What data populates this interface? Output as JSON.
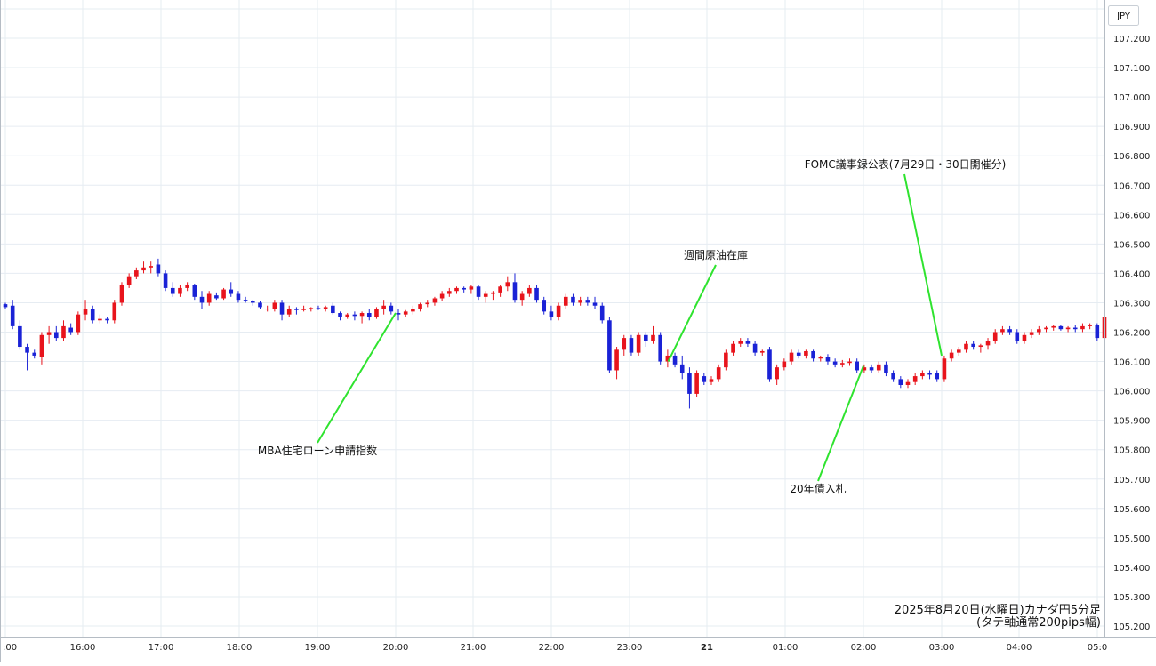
{
  "chart_data": {
    "type": "candlestick",
    "currency": "JPY",
    "colors": {
      "up": "#e8141c",
      "down": "#1a22d6",
      "annotation_line": "#2fe32f",
      "grid": "#e6ecf2"
    },
    "y_ticks": [
      "107.200",
      "107.100",
      "107.000",
      "106.900",
      "106.800",
      "106.700",
      "106.600",
      "106.500",
      "106.400",
      "106.300",
      "106.200",
      "106.100",
      "106.000",
      "105.900",
      "105.800",
      "105.700",
      "105.600",
      "105.500",
      "105.400",
      "105.300",
      "105.200"
    ],
    "ylim": [
      105.2,
      107.2
    ],
    "x_ticks": [
      ":00",
      "16:00",
      "17:00",
      "18:00",
      "19:00",
      "20:00",
      "21:00",
      "22:00",
      "23:00",
      "21",
      "01:00",
      "02:00",
      "03:00",
      "04:00",
      "05:0"
    ],
    "candles": [
      [
        106.295,
        106.3,
        106.28,
        106.285
      ],
      [
        106.29,
        106.31,
        106.21,
        106.22
      ],
      [
        106.22,
        106.24,
        106.14,
        106.15
      ],
      [
        106.15,
        106.16,
        106.07,
        106.13
      ],
      [
        106.13,
        106.14,
        106.11,
        106.12
      ],
      [
        106.115,
        106.2,
        106.09,
        106.19
      ],
      [
        106.19,
        106.22,
        106.16,
        106.2
      ],
      [
        106.2,
        106.22,
        106.17,
        106.18
      ],
      [
        106.18,
        106.24,
        106.17,
        106.22
      ],
      [
        106.215,
        106.23,
        106.19,
        106.2
      ],
      [
        106.2,
        106.27,
        106.19,
        106.26
      ],
      [
        106.26,
        106.31,
        106.24,
        106.28
      ],
      [
        106.28,
        106.29,
        106.23,
        106.24
      ],
      [
        106.24,
        106.26,
        106.23,
        106.245
      ],
      [
        106.245,
        106.25,
        106.23,
        106.24
      ],
      [
        106.24,
        106.31,
        106.23,
        106.3
      ],
      [
        106.3,
        106.37,
        106.29,
        106.36
      ],
      [
        106.36,
        106.4,
        106.35,
        106.39
      ],
      [
        106.39,
        106.42,
        106.38,
        106.41
      ],
      [
        106.41,
        106.44,
        106.4,
        106.42
      ],
      [
        106.42,
        106.44,
        106.4,
        106.425
      ],
      [
        106.43,
        106.45,
        106.39,
        106.4
      ],
      [
        106.4,
        106.41,
        106.34,
        106.35
      ],
      [
        106.35,
        106.37,
        106.32,
        106.33
      ],
      [
        106.33,
        106.36,
        106.32,
        106.35
      ],
      [
        106.35,
        106.37,
        106.34,
        106.36
      ],
      [
        106.36,
        106.365,
        106.31,
        106.32
      ],
      [
        106.32,
        106.34,
        106.28,
        106.3
      ],
      [
        106.3,
        106.34,
        106.29,
        106.33
      ],
      [
        106.325,
        106.335,
        106.31,
        106.315
      ],
      [
        106.315,
        106.35,
        106.31,
        106.345
      ],
      [
        106.345,
        106.37,
        106.32,
        106.33
      ],
      [
        106.33,
        106.34,
        106.3,
        106.31
      ],
      [
        106.31,
        106.32,
        106.3,
        106.305
      ],
      [
        106.305,
        106.31,
        106.29,
        106.3
      ],
      [
        106.3,
        106.305,
        106.28,
        106.285
      ],
      [
        106.28,
        106.29,
        106.27,
        106.28
      ],
      [
        106.28,
        106.31,
        106.27,
        106.3
      ],
      [
        106.3,
        106.31,
        106.24,
        106.26
      ],
      [
        106.26,
        106.29,
        106.25,
        106.28
      ],
      [
        106.28,
        106.285,
        106.26,
        106.275
      ],
      [
        106.275,
        106.29,
        106.27,
        106.28
      ],
      [
        106.28,
        106.285,
        106.27,
        106.282
      ],
      [
        106.282,
        106.29,
        106.275,
        106.28
      ],
      [
        106.28,
        106.29,
        106.27,
        106.285
      ],
      [
        106.29,
        106.3,
        106.26,
        106.265
      ],
      [
        106.265,
        106.27,
        106.24,
        106.25
      ],
      [
        106.25,
        106.265,
        106.245,
        106.26
      ],
      [
        106.26,
        106.27,
        106.24,
        106.255
      ],
      [
        106.255,
        106.27,
        106.23,
        106.265
      ],
      [
        106.265,
        106.28,
        106.24,
        106.25
      ],
      [
        106.25,
        106.285,
        106.245,
        106.28
      ],
      [
        106.28,
        106.31,
        106.26,
        106.29
      ],
      [
        106.29,
        106.3,
        106.26,
        106.27
      ],
      [
        106.265,
        106.28,
        106.24,
        106.26
      ],
      [
        106.26,
        106.275,
        106.25,
        106.27
      ],
      [
        106.27,
        106.29,
        106.26,
        106.28
      ],
      [
        106.28,
        106.3,
        106.27,
        106.295
      ],
      [
        106.295,
        106.31,
        106.285,
        106.3
      ],
      [
        106.3,
        106.32,
        106.29,
        106.315
      ],
      [
        106.315,
        106.34,
        106.305,
        106.33
      ],
      [
        106.33,
        106.35,
        106.32,
        106.34
      ],
      [
        106.34,
        106.355,
        106.33,
        106.35
      ],
      [
        106.35,
        106.355,
        106.335,
        106.345
      ],
      [
        106.345,
        106.36,
        106.33,
        106.355
      ],
      [
        106.355,
        106.36,
        106.31,
        106.32
      ],
      [
        106.32,
        106.34,
        106.3,
        106.33
      ],
      [
        106.33,
        106.34,
        106.31,
        106.335
      ],
      [
        106.335,
        106.36,
        106.32,
        106.355
      ],
      [
        106.355,
        106.39,
        106.34,
        106.37
      ],
      [
        106.37,
        106.4,
        106.3,
        106.31
      ],
      [
        106.31,
        106.34,
        106.29,
        106.33
      ],
      [
        106.33,
        106.36,
        106.32,
        106.35
      ],
      [
        106.35,
        106.36,
        106.3,
        106.31
      ],
      [
        106.31,
        106.32,
        106.26,
        106.27
      ],
      [
        106.27,
        106.29,
        106.24,
        106.25
      ],
      [
        106.25,
        106.3,
        106.24,
        106.29
      ],
      [
        106.29,
        106.33,
        106.28,
        106.32
      ],
      [
        106.32,
        106.33,
        106.29,
        106.3
      ],
      [
        106.3,
        106.32,
        106.29,
        106.31
      ],
      [
        106.31,
        106.32,
        106.29,
        106.3
      ],
      [
        106.3,
        106.32,
        106.28,
        106.29
      ],
      [
        106.29,
        106.3,
        106.23,
        106.24
      ],
      [
        106.24,
        106.25,
        106.06,
        106.07
      ],
      [
        106.07,
        106.15,
        106.04,
        106.14
      ],
      [
        106.14,
        106.19,
        106.12,
        106.18
      ],
      [
        106.18,
        106.19,
        106.12,
        106.13
      ],
      [
        106.13,
        106.2,
        106.12,
        106.19
      ],
      [
        106.19,
        106.2,
        106.15,
        106.17
      ],
      [
        106.17,
        106.22,
        106.16,
        106.19
      ],
      [
        106.19,
        106.2,
        106.09,
        106.1
      ],
      [
        106.1,
        106.14,
        106.08,
        106.12
      ],
      [
        106.12,
        106.13,
        106.08,
        106.09
      ],
      [
        106.09,
        106.12,
        106.04,
        106.06
      ],
      [
        106.06,
        106.08,
        105.94,
        105.99
      ],
      [
        105.99,
        106.07,
        105.98,
        106.06
      ],
      [
        106.05,
        106.06,
        106.02,
        106.03
      ],
      [
        106.03,
        106.05,
        106.02,
        106.04
      ],
      [
        106.04,
        106.09,
        106.03,
        106.08
      ],
      [
        106.08,
        106.14,
        106.07,
        106.13
      ],
      [
        106.13,
        106.17,
        106.12,
        106.16
      ],
      [
        106.16,
        106.18,
        106.15,
        106.17
      ],
      [
        106.17,
        106.18,
        106.15,
        106.16
      ],
      [
        106.16,
        106.17,
        106.12,
        106.13
      ],
      [
        106.13,
        106.14,
        106.12,
        106.135
      ],
      [
        106.14,
        106.15,
        106.03,
        106.04
      ],
      [
        106.04,
        106.09,
        106.02,
        106.08
      ],
      [
        106.08,
        106.11,
        106.07,
        106.1
      ],
      [
        106.1,
        106.14,
        106.09,
        106.13
      ],
      [
        106.13,
        106.14,
        106.11,
        106.12
      ],
      [
        106.12,
        106.14,
        106.11,
        106.135
      ],
      [
        106.135,
        106.14,
        106.1,
        106.11
      ],
      [
        106.11,
        106.12,
        106.1,
        106.115
      ],
      [
        106.115,
        106.125,
        106.09,
        106.1
      ],
      [
        106.1,
        106.11,
        106.08,
        106.09
      ],
      [
        106.09,
        106.105,
        106.08,
        106.095
      ],
      [
        106.095,
        106.11,
        106.085,
        106.1
      ],
      [
        106.1,
        106.11,
        106.06,
        106.07
      ],
      [
        106.07,
        106.09,
        106.06,
        106.08
      ],
      [
        106.08,
        106.09,
        106.06,
        106.07
      ],
      [
        106.07,
        106.1,
        106.06,
        106.09
      ],
      [
        106.09,
        106.1,
        106.05,
        106.06
      ],
      [
        106.06,
        106.07,
        106.03,
        106.04
      ],
      [
        106.04,
        106.05,
        106.01,
        106.02
      ],
      [
        106.02,
        106.04,
        106.01,
        106.03
      ],
      [
        106.03,
        106.06,
        106.02,
        106.05
      ],
      [
        106.05,
        106.07,
        106.04,
        106.06
      ],
      [
        106.06,
        106.07,
        106.04,
        106.055
      ],
      [
        106.06,
        106.07,
        106.03,
        106.04
      ],
      [
        106.04,
        106.12,
        106.03,
        106.11
      ],
      [
        106.11,
        106.14,
        106.1,
        106.13
      ],
      [
        106.13,
        106.15,
        106.12,
        106.14
      ],
      [
        106.14,
        106.17,
        106.13,
        106.16
      ],
      [
        106.16,
        106.17,
        106.14,
        106.15
      ],
      [
        106.15,
        106.16,
        106.13,
        106.155
      ],
      [
        106.155,
        106.18,
        106.14,
        106.17
      ],
      [
        106.17,
        106.21,
        106.16,
        106.2
      ],
      [
        106.2,
        106.22,
        106.19,
        106.21
      ],
      [
        106.21,
        106.22,
        106.19,
        106.2
      ],
      [
        106.2,
        106.21,
        106.16,
        106.17
      ],
      [
        106.17,
        106.2,
        106.16,
        106.19
      ],
      [
        106.19,
        106.21,
        106.18,
        106.2
      ],
      [
        106.2,
        106.22,
        106.19,
        106.21
      ],
      [
        106.21,
        106.22,
        106.2,
        106.215
      ],
      [
        106.215,
        106.225,
        106.205,
        106.22
      ],
      [
        106.22,
        106.225,
        106.205,
        106.21
      ],
      [
        106.21,
        106.22,
        106.2,
        106.215
      ],
      [
        106.215,
        106.225,
        106.2,
        106.21
      ],
      [
        106.21,
        106.23,
        106.2,
        106.22
      ],
      [
        106.22,
        106.23,
        106.21,
        106.225
      ],
      [
        106.225,
        106.23,
        106.17,
        106.18
      ],
      [
        106.18,
        106.27,
        106.17,
        106.25
      ]
    ],
    "annotations": [
      {
        "label": "MBA住宅ローン申請指数",
        "time": "20:00",
        "price": 106.265
      },
      {
        "label": "週間原油在庫",
        "time": "23:30",
        "price": 106.1
      },
      {
        "label": "20年債入札",
        "time": "02:00",
        "price": 106.085
      },
      {
        "label": "FOMC議事録公表(7月29日・30日開催分)",
        "time": "03:00",
        "price": 106.12
      }
    ],
    "caption": [
      "2025年8月20日(水曜日)カナダ円5分足",
      "(タテ軸通常200pips幅)"
    ]
  }
}
